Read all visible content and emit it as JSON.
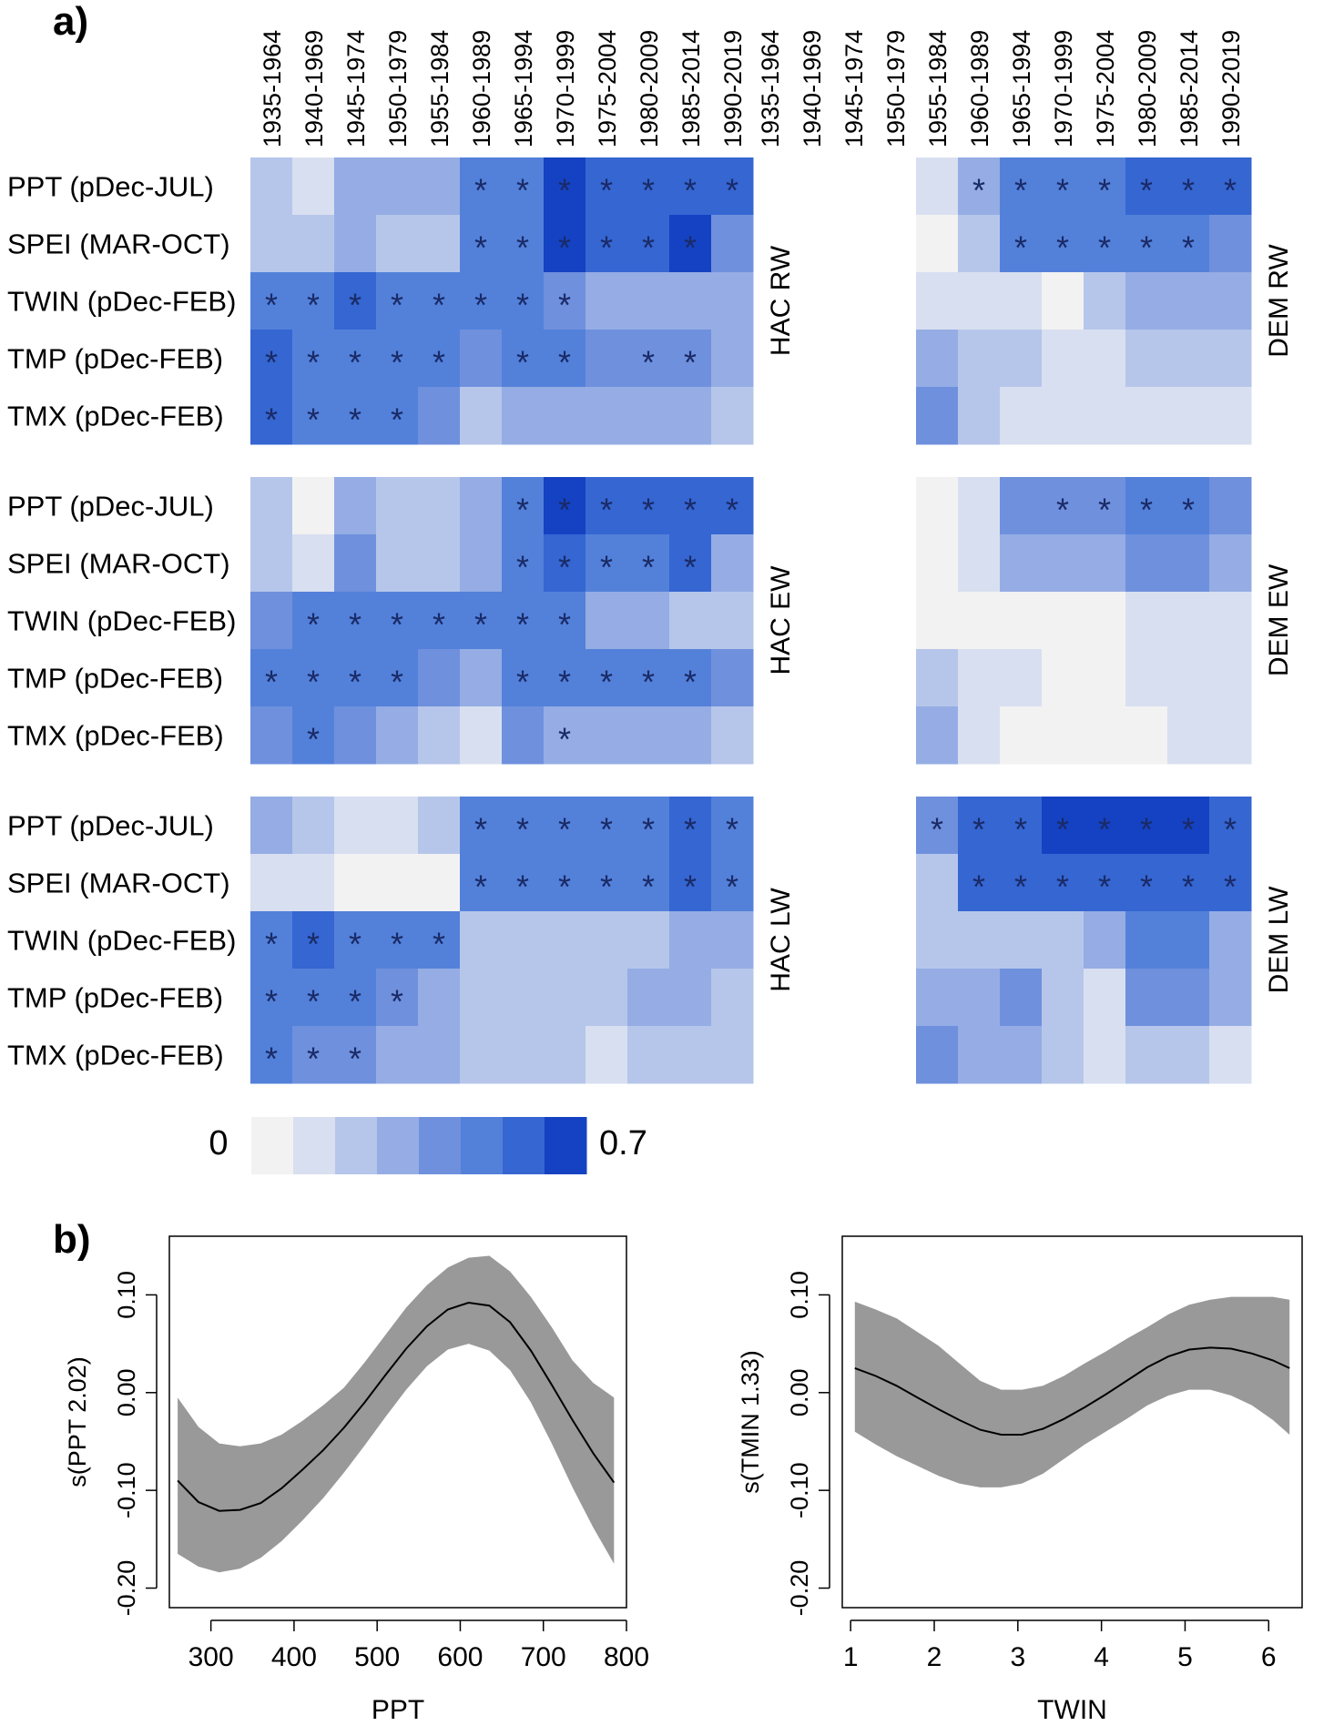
{
  "figure": {
    "panel_a_label": "a)",
    "panel_b_label": "b)",
    "colors": {
      "scale": [
        "#f2f2f2",
        "#d8dff0",
        "#b6c6ea",
        "#95ade4",
        "#6f90dd",
        "#5381da",
        "#3566d2",
        "#1442c2"
      ],
      "asterisk": "#1a2a66",
      "ci_band": "#999999",
      "curve": "#000000"
    }
  },
  "heatmap": {
    "periods": [
      "1935-1964",
      "1940-1969",
      "1945-1974",
      "1950-1979",
      "1955-1984",
      "1960-1989",
      "1965-1994",
      "1970-1999",
      "1975-2004",
      "1980-2009",
      "1985-2014",
      "1990-2019"
    ],
    "variables": [
      "PPT (pDec-JUL)",
      "SPEI (MAR-OCT)",
      "TWIN (pDec-FEB)",
      "TMP (pDec-FEB)",
      "TMX (pDec-FEB)"
    ],
    "colorbar": {
      "min_label": "0",
      "max_label": "0.7",
      "range": [
        0,
        0.7
      ],
      "steps": 8
    },
    "blocks": [
      {
        "site_label": "HAC RW",
        "values": [
          [
            2,
            1,
            3,
            3,
            3,
            5,
            5,
            7,
            6,
            6,
            6,
            6
          ],
          [
            2,
            2,
            3,
            2,
            2,
            5,
            5,
            7,
            6,
            6,
            7,
            4
          ],
          [
            5,
            5,
            6,
            5,
            5,
            5,
            5,
            4,
            3,
            3,
            3,
            3
          ],
          [
            6,
            5,
            5,
            5,
            5,
            4,
            5,
            5,
            4,
            4,
            4,
            3
          ],
          [
            6,
            5,
            5,
            5,
            4,
            2,
            3,
            3,
            3,
            3,
            3,
            2
          ]
        ],
        "sig": [
          [
            0,
            0,
            0,
            0,
            0,
            1,
            1,
            1,
            1,
            1,
            1,
            1
          ],
          [
            0,
            0,
            0,
            0,
            0,
            1,
            1,
            1,
            1,
            1,
            1,
            0
          ],
          [
            1,
            1,
            1,
            1,
            1,
            1,
            1,
            1,
            0,
            0,
            0,
            0
          ],
          [
            1,
            1,
            1,
            1,
            1,
            0,
            1,
            1,
            0,
            1,
            1,
            0
          ],
          [
            1,
            1,
            1,
            1,
            0,
            0,
            0,
            0,
            0,
            0,
            0,
            0
          ]
        ]
      },
      {
        "site_label": "DEM RW",
        "values": [
          [
            null,
            null,
            null,
            null,
            1,
            3,
            5,
            5,
            5,
            6,
            6,
            6
          ],
          [
            null,
            null,
            null,
            null,
            0,
            2,
            5,
            5,
            5,
            5,
            5,
            4
          ],
          [
            null,
            null,
            null,
            null,
            1,
            1,
            1,
            0,
            2,
            3,
            3,
            3
          ],
          [
            null,
            null,
            null,
            null,
            3,
            2,
            2,
            1,
            1,
            2,
            2,
            2
          ],
          [
            null,
            null,
            null,
            null,
            4,
            2,
            1,
            1,
            1,
            1,
            1,
            1
          ]
        ],
        "sig": [
          [
            0,
            0,
            0,
            0,
            0,
            1,
            1,
            1,
            1,
            1,
            1,
            1
          ],
          [
            0,
            0,
            0,
            0,
            0,
            0,
            1,
            1,
            1,
            1,
            1,
            0
          ],
          [
            0,
            0,
            0,
            0,
            0,
            0,
            0,
            0,
            0,
            0,
            0,
            0
          ],
          [
            0,
            0,
            0,
            0,
            0,
            0,
            0,
            0,
            0,
            0,
            0,
            0
          ],
          [
            0,
            0,
            0,
            0,
            0,
            0,
            0,
            0,
            0,
            0,
            0,
            0
          ]
        ]
      },
      {
        "site_label": "HAC EW",
        "values": [
          [
            2,
            0,
            3,
            2,
            2,
            3,
            5,
            7,
            6,
            6,
            6,
            6
          ],
          [
            2,
            1,
            4,
            2,
            2,
            3,
            5,
            6,
            5,
            5,
            6,
            3
          ],
          [
            4,
            5,
            5,
            5,
            5,
            5,
            5,
            5,
            3,
            3,
            2,
            2
          ],
          [
            5,
            5,
            5,
            5,
            4,
            3,
            5,
            5,
            5,
            5,
            5,
            4
          ],
          [
            4,
            5,
            4,
            3,
            2,
            1,
            4,
            3,
            3,
            3,
            3,
            2
          ]
        ],
        "sig": [
          [
            0,
            0,
            0,
            0,
            0,
            0,
            1,
            1,
            1,
            1,
            1,
            1
          ],
          [
            0,
            0,
            0,
            0,
            0,
            0,
            1,
            1,
            1,
            1,
            1,
            0
          ],
          [
            0,
            1,
            1,
            1,
            1,
            1,
            1,
            1,
            0,
            0,
            0,
            0
          ],
          [
            1,
            1,
            1,
            1,
            0,
            0,
            1,
            1,
            1,
            1,
            1,
            0
          ],
          [
            0,
            1,
            0,
            0,
            0,
            0,
            0,
            1,
            0,
            0,
            0,
            0
          ]
        ]
      },
      {
        "site_label": "DEM EW",
        "values": [
          [
            null,
            null,
            null,
            null,
            0,
            1,
            4,
            4,
            4,
            5,
            5,
            4
          ],
          [
            null,
            null,
            null,
            null,
            0,
            1,
            3,
            3,
            3,
            4,
            4,
            3
          ],
          [
            null,
            null,
            null,
            null,
            0,
            0,
            0,
            0,
            0,
            1,
            1,
            1
          ],
          [
            null,
            null,
            null,
            null,
            2,
            1,
            1,
            0,
            0,
            1,
            1,
            1
          ],
          [
            null,
            null,
            null,
            null,
            3,
            1,
            0,
            0,
            0,
            0,
            1,
            1
          ]
        ],
        "sig": [
          [
            0,
            0,
            0,
            0,
            0,
            0,
            0,
            1,
            1,
            1,
            1,
            0
          ],
          [
            0,
            0,
            0,
            0,
            0,
            0,
            0,
            0,
            0,
            0,
            0,
            0
          ],
          [
            0,
            0,
            0,
            0,
            0,
            0,
            0,
            0,
            0,
            0,
            0,
            0
          ],
          [
            0,
            0,
            0,
            0,
            0,
            0,
            0,
            0,
            0,
            0,
            0,
            0
          ],
          [
            0,
            0,
            0,
            0,
            0,
            0,
            0,
            0,
            0,
            0,
            0,
            0
          ]
        ]
      },
      {
        "site_label": "HAC LW",
        "values": [
          [
            3,
            2,
            1,
            1,
            2,
            5,
            5,
            5,
            5,
            5,
            6,
            5
          ],
          [
            1,
            1,
            0,
            0,
            0,
            5,
            5,
            5,
            5,
            5,
            6,
            5
          ],
          [
            5,
            6,
            5,
            5,
            5,
            2,
            2,
            2,
            2,
            2,
            3,
            3
          ],
          [
            5,
            5,
            5,
            4,
            3,
            2,
            2,
            2,
            2,
            3,
            3,
            2
          ],
          [
            5,
            4,
            4,
            3,
            3,
            2,
            2,
            2,
            1,
            2,
            2,
            2
          ]
        ],
        "sig": [
          [
            0,
            0,
            0,
            0,
            0,
            1,
            1,
            1,
            1,
            1,
            1,
            1
          ],
          [
            0,
            0,
            0,
            0,
            0,
            1,
            1,
            1,
            1,
            1,
            1,
            1
          ],
          [
            1,
            1,
            1,
            1,
            1,
            0,
            0,
            0,
            0,
            0,
            0,
            0
          ],
          [
            1,
            1,
            1,
            1,
            0,
            0,
            0,
            0,
            0,
            0,
            0,
            0
          ],
          [
            1,
            1,
            1,
            0,
            0,
            0,
            0,
            0,
            0,
            0,
            0,
            0
          ]
        ]
      },
      {
        "site_label": "DEM LW",
        "values": [
          [
            null,
            null,
            null,
            null,
            4,
            6,
            6,
            7,
            7,
            7,
            7,
            6
          ],
          [
            null,
            null,
            null,
            null,
            2,
            6,
            6,
            6,
            6,
            6,
            6,
            6
          ],
          [
            null,
            null,
            null,
            null,
            2,
            2,
            2,
            2,
            3,
            5,
            5,
            3
          ],
          [
            null,
            null,
            null,
            null,
            3,
            3,
            4,
            2,
            1,
            4,
            4,
            3
          ],
          [
            null,
            null,
            null,
            null,
            4,
            3,
            3,
            2,
            1,
            2,
            2,
            1
          ]
        ],
        "sig": [
          [
            0,
            0,
            0,
            0,
            1,
            1,
            1,
            1,
            1,
            1,
            1,
            1
          ],
          [
            0,
            0,
            0,
            0,
            0,
            1,
            1,
            1,
            1,
            1,
            1,
            1
          ],
          [
            0,
            0,
            0,
            0,
            0,
            0,
            0,
            0,
            0,
            0,
            0,
            0
          ],
          [
            0,
            0,
            0,
            0,
            0,
            0,
            0,
            0,
            0,
            0,
            0,
            0
          ],
          [
            0,
            0,
            0,
            0,
            0,
            0,
            0,
            0,
            0,
            0,
            0,
            0
          ]
        ]
      }
    ]
  },
  "chart_data": [
    {
      "type": "heatmap",
      "note_values": "color class index 0-7 spanning 0 to 0.7; null = no data",
      "periods_ref": "heatmap.periods",
      "variables_ref": "heatmap.variables"
    },
    {
      "type": "line",
      "xlabel": "PPT",
      "ylabel": "s(PPT 2.02)",
      "xlim": [
        250,
        800
      ],
      "ylim": [
        -0.22,
        0.16
      ],
      "xticks": [
        300,
        400,
        500,
        600,
        700,
        800
      ],
      "yticks": [
        -0.2,
        -0.1,
        0.0,
        0.1
      ],
      "ytick_labels": [
        "-0.20",
        "-0.10",
        "0.00",
        "0.10"
      ],
      "x": [
        260,
        285,
        310,
        335,
        360,
        385,
        410,
        435,
        460,
        485,
        510,
        535,
        560,
        585,
        610,
        635,
        660,
        685,
        710,
        735,
        760,
        785
      ],
      "fit": [
        -0.09,
        -0.112,
        -0.121,
        -0.12,
        -0.113,
        -0.098,
        -0.079,
        -0.059,
        -0.036,
        -0.01,
        0.018,
        0.045,
        0.068,
        0.085,
        0.092,
        0.089,
        0.072,
        0.043,
        0.008,
        -0.028,
        -0.062,
        -0.092
      ],
      "lower": [
        -0.165,
        -0.178,
        -0.184,
        -0.18,
        -0.169,
        -0.152,
        -0.131,
        -0.108,
        -0.082,
        -0.054,
        -0.025,
        0.003,
        0.027,
        0.044,
        0.05,
        0.043,
        0.023,
        -0.01,
        -0.052,
        -0.097,
        -0.138,
        -0.175
      ],
      "upper": [
        -0.005,
        -0.035,
        -0.052,
        -0.055,
        -0.052,
        -0.043,
        -0.029,
        -0.013,
        0.005,
        0.031,
        0.059,
        0.087,
        0.11,
        0.128,
        0.138,
        0.14,
        0.124,
        0.098,
        0.067,
        0.033,
        0.01,
        -0.005
      ]
    },
    {
      "type": "line",
      "xlabel": "TWIN",
      "ylabel": "s(TMIN 1.33)",
      "xlim": [
        0.9,
        6.4
      ],
      "ylim": [
        -0.22,
        0.16
      ],
      "xticks": [
        1,
        2,
        3,
        4,
        5,
        6
      ],
      "yticks": [
        -0.2,
        -0.1,
        0.0,
        0.1
      ],
      "ytick_labels": [
        "-0.20",
        "-0.10",
        "0.00",
        "0.10"
      ],
      "x": [
        1.05,
        1.3,
        1.55,
        1.8,
        2.05,
        2.3,
        2.55,
        2.8,
        3.05,
        3.3,
        3.55,
        3.8,
        4.05,
        4.3,
        4.55,
        4.8,
        5.05,
        5.3,
        5.55,
        5.8,
        6.05,
        6.25
      ],
      "fit": [
        0.025,
        0.017,
        0.007,
        -0.005,
        -0.017,
        -0.028,
        -0.038,
        -0.043,
        -0.043,
        -0.037,
        -0.027,
        -0.015,
        -0.002,
        0.012,
        0.026,
        0.037,
        0.044,
        0.046,
        0.045,
        0.04,
        0.033,
        0.025
      ],
      "lower": [
        -0.04,
        -0.053,
        -0.065,
        -0.075,
        -0.085,
        -0.093,
        -0.097,
        -0.097,
        -0.093,
        -0.083,
        -0.068,
        -0.053,
        -0.04,
        -0.027,
        -0.013,
        -0.003,
        0.003,
        0.003,
        -0.003,
        -0.013,
        -0.028,
        -0.043
      ],
      "upper": [
        0.093,
        0.085,
        0.076,
        0.062,
        0.048,
        0.03,
        0.012,
        0.003,
        0.003,
        0.007,
        0.017,
        0.03,
        0.042,
        0.055,
        0.067,
        0.08,
        0.09,
        0.095,
        0.098,
        0.098,
        0.098,
        0.095
      ]
    }
  ]
}
